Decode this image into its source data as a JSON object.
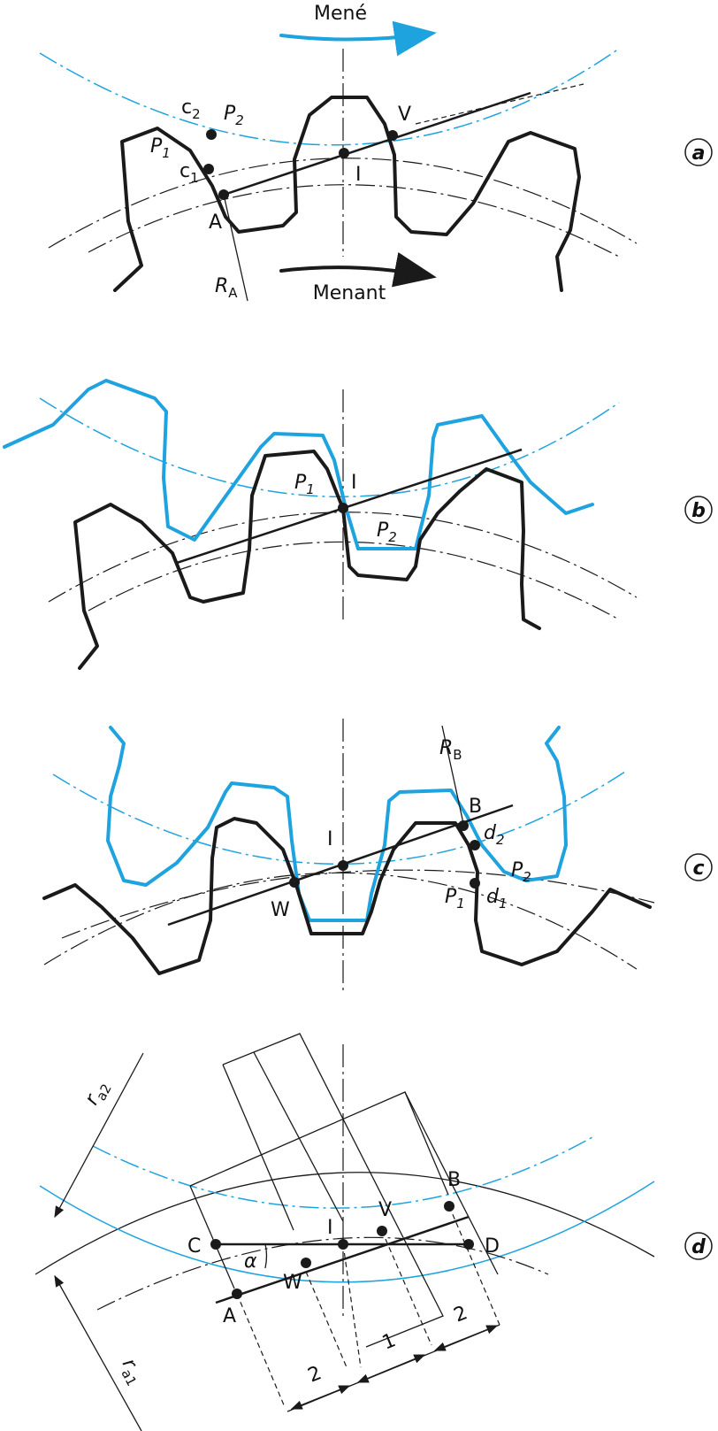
{
  "colors": {
    "pinion": "#1a1a1a",
    "wheel": "#1ea3df"
  },
  "panels": {
    "a": "a",
    "b": "b",
    "c": "c",
    "d": "d"
  },
  "arrows": {
    "driven": "Mené",
    "driver": "Menant"
  },
  "points_a": {
    "c2": "c",
    "c2_sub": "2",
    "P2": "P",
    "P2_sub": "2",
    "P1": "P",
    "P1_sub": "1",
    "c1": "c",
    "c1_sub": "1",
    "A": "A",
    "I": "I",
    "V": "V",
    "RA": "R",
    "RA_sub": "A"
  },
  "points_b": {
    "P1": "P",
    "P1_sub": "1",
    "I": "I",
    "P2": "P",
    "P2_sub": "2"
  },
  "points_c": {
    "RB": "R",
    "RB_sub": "B",
    "B": "B",
    "I": "I",
    "W": "W",
    "d2": "d",
    "d2_sub": "2",
    "P2": "P",
    "P2_sub": "2",
    "P1": "P",
    "P1_sub": "1",
    "d1": "d",
    "d1_sub": "1"
  },
  "points_d": {
    "ra2": "r",
    "ra2_sub": "a2",
    "ra1": "r",
    "ra1_sub": "a1",
    "C": "C",
    "D": "D",
    "I": "I",
    "V": "V",
    "B": "B",
    "W": "W",
    "A": "A",
    "alpha": "α",
    "dim1": "2",
    "dim2": "1",
    "dim3": "2"
  }
}
